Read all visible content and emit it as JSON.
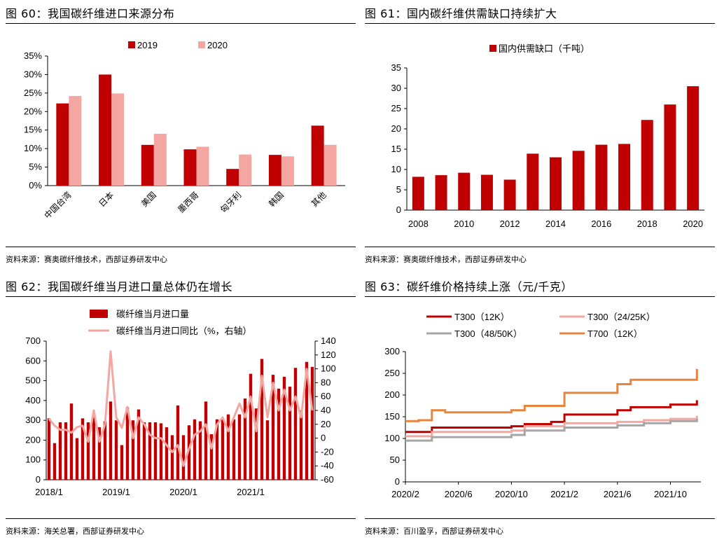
{
  "charts": [
    {
      "title": "图 60：我国碳纤维进口来源分布",
      "source": "资料来源：赛奥碳纤维技术，西部证券研发中心",
      "chart_data": {
        "type": "bar",
        "categories": [
          "中国台湾",
          "日本",
          "美国",
          "墨西哥",
          "匈牙利",
          "韩国",
          "其他"
        ],
        "series": [
          {
            "name": "2019",
            "values": [
              22.2,
              30.0,
              11.0,
              9.8,
              4.5,
              8.3,
              16.2
            ],
            "color": "#c00000"
          },
          {
            "name": "2020",
            "values": [
              24.2,
              24.9,
              14.0,
              10.5,
              8.4,
              7.9,
              11.0
            ],
            "color": "#f4a7a2"
          }
        ],
        "ylim": [
          0,
          35
        ],
        "yticks": [
          "0%",
          "5%",
          "10%",
          "15%",
          "20%",
          "25%",
          "30%",
          "35%"
        ],
        "legend": "top"
      }
    },
    {
      "title": "图 61：国内碳纤维供需缺口持续扩大",
      "source": "资料来源：赛奥碳纤维技术，西部证券研发中心",
      "chart_data": {
        "type": "bar",
        "x": [
          2008,
          2009,
          2010,
          2011,
          2012,
          2013,
          2014,
          2015,
          2016,
          2017,
          2018,
          2019,
          2020
        ],
        "xticks": [
          "2008",
          "2010",
          "2012",
          "2014",
          "2016",
          "2018",
          "2020"
        ],
        "series": [
          {
            "name": "国内供需缺口（千吨）",
            "values": [
              8.2,
              8.6,
              9.2,
              8.7,
              7.5,
              13.9,
              13.0,
              14.6,
              16.1,
              16.3,
              22.2,
              26.0,
              30.5
            ],
            "color": "#c00000"
          }
        ],
        "ylim": [
          0,
          35
        ],
        "yticks": [
          "0",
          "5",
          "10",
          "15",
          "20",
          "25",
          "30",
          "35"
        ],
        "legend": "top"
      }
    },
    {
      "title": "图 62：我国碳纤维当月进口量总体仍在增长",
      "source": "资料来源：海关总署，西部证券研发中心",
      "chart_data": {
        "type": "bar+line",
        "x": [
          "2018/1",
          "2018/2",
          "2018/3",
          "2018/4",
          "2018/5",
          "2018/6",
          "2018/7",
          "2018/8",
          "2018/9",
          "2018/10",
          "2018/11",
          "2018/12",
          "2019/1",
          "2019/2",
          "2019/3",
          "2019/4",
          "2019/5",
          "2019/6",
          "2019/7",
          "2019/8",
          "2019/9",
          "2019/10",
          "2019/11",
          "2019/12",
          "2020/1",
          "2020/2",
          "2020/3",
          "2020/4",
          "2020/5",
          "2020/6",
          "2020/7",
          "2020/8",
          "2020/9",
          "2020/10",
          "2020/11",
          "2020/12",
          "2021/1",
          "2021/2",
          "2021/3",
          "2021/4",
          "2021/5",
          "2021/6",
          "2021/7",
          "2021/8",
          "2021/9",
          "2021/10",
          "2021/11",
          "2021/12"
        ],
        "xticks": [
          "2018/1",
          "2019/1",
          "2020/1",
          "2021/1"
        ],
        "series": [
          {
            "name": "碳纤维当月进口量",
            "axis": "left",
            "color": "#c00000",
            "values": [
              310,
              185,
              290,
              290,
              385,
              210,
              310,
              290,
              335,
              265,
              295,
              395,
              300,
              175,
              365,
              300,
              355,
              290,
              290,
              290,
              285,
              265,
              225,
              375,
              225,
              275,
              305,
              295,
              395,
              230,
              305,
              305,
              330,
              305,
              330,
              410,
              535,
              360,
              610,
              300,
              530,
              460,
              520,
              470,
              565,
              350,
              595,
              570
            ]
          },
          {
            "name": "碳纤维当月进口同比（%，右轴）",
            "axis": "right",
            "color": "#f4a7a2",
            "values": [
              28,
              18,
              12,
              12,
              8,
              16,
              18,
              -5,
              40,
              -5,
              20,
              125,
              30,
              15,
              45,
              0,
              30,
              20,
              5,
              0,
              0,
              -10,
              -20,
              -10,
              -40,
              -15,
              5,
              10,
              20,
              -15,
              20,
              30,
              10,
              30,
              50,
              30,
              60,
              10,
              90,
              30,
              80,
              40,
              70,
              40,
              60,
              30,
              100,
              40
            ]
          }
        ],
        "ylim": [
          0,
          700
        ],
        "yticks": [
          "0",
          "100",
          "200",
          "300",
          "400",
          "500",
          "600",
          "700"
        ],
        "y2lim": [
          -60,
          140
        ],
        "y2ticks": [
          "-60",
          "-40",
          "-20",
          "0",
          "20",
          "40",
          "60",
          "80",
          "100",
          "120",
          "140"
        ],
        "legend": "top-left"
      }
    },
    {
      "title": "图 63：碳纤维价格持续上涨（元/千克）",
      "source": "资料来源：百川盈孚，西部证券研发中心",
      "chart_data": {
        "type": "line",
        "x": [
          "2020/2",
          "2020/6",
          "2020/10",
          "2021/2",
          "2021/6",
          "2021/10",
          "2021/12"
        ],
        "xticks": [
          "2020/2",
          "2020/6",
          "2020/10",
          "2021/2",
          "2021/6",
          "2021/10"
        ],
        "series": [
          {
            "name": "T300（12K）",
            "color": "#c00000",
            "points": [
              [
                "2020/2",
                115
              ],
              [
                "2020/3",
                115
              ],
              [
                "2020/4",
                125
              ],
              [
                "2020/10",
                128
              ],
              [
                "2020/11",
                133
              ],
              [
                "2021/1",
                138
              ],
              [
                "2021/2",
                155
              ],
              [
                "2021/6",
                165
              ],
              [
                "2021/7",
                172
              ],
              [
                "2021/9",
                172
              ],
              [
                "2021/10",
                178
              ],
              [
                "2021/12",
                188
              ]
            ]
          },
          {
            "name": "T300（24/25K）",
            "color": "#f4a7a2",
            "points": [
              [
                "2020/2",
                105
              ],
              [
                "2020/3",
                105
              ],
              [
                "2020/4",
                115
              ],
              [
                "2020/10",
                118
              ],
              [
                "2020/11",
                128
              ],
              [
                "2021/2",
                135
              ],
              [
                "2021/6",
                138
              ],
              [
                "2021/8",
                142
              ],
              [
                "2021/10",
                145
              ],
              [
                "2021/12",
                152
              ]
            ]
          },
          {
            "name": "T300（48/50K）",
            "color": "#a6a6a6",
            "points": [
              [
                "2020/2",
                95
              ],
              [
                "2020/3",
                95
              ],
              [
                "2020/4",
                103
              ],
              [
                "2020/10",
                108
              ],
              [
                "2020/11",
                118
              ],
              [
                "2021/2",
                125
              ],
              [
                "2021/6",
                130
              ],
              [
                "2021/8",
                135
              ],
              [
                "2021/10",
                140
              ],
              [
                "2021/12",
                145
              ]
            ]
          },
          {
            "name": "T700（12K）",
            "color": "#e8843c",
            "points": [
              [
                "2020/2",
                140
              ],
              [
                "2020/3",
                142
              ],
              [
                "2020/4",
                165
              ],
              [
                "2020/5",
                160
              ],
              [
                "2020/10",
                165
              ],
              [
                "2020/11",
                175
              ],
              [
                "2021/1",
                175
              ],
              [
                "2021/2",
                205
              ],
              [
                "2021/6",
                225
              ],
              [
                "2021/7",
                235
              ],
              [
                "2021/11",
                235
              ],
              [
                "2021/12",
                260
              ]
            ]
          }
        ],
        "ylim": [
          0,
          300
        ],
        "yticks": [
          "0",
          "50",
          "100",
          "150",
          "200",
          "250",
          "300"
        ],
        "legend": "top"
      }
    }
  ]
}
